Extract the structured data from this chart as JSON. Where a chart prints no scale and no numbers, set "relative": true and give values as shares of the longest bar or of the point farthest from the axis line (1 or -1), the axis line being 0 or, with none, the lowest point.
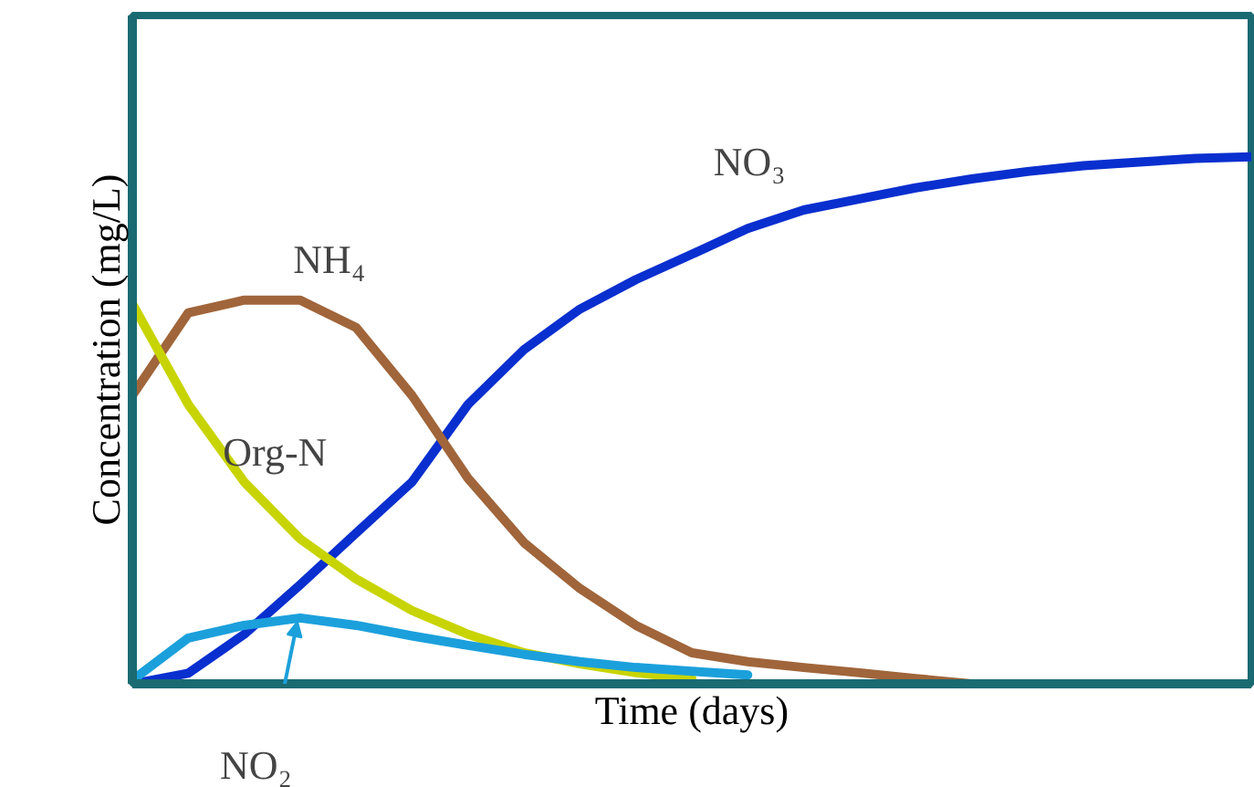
{
  "chart_data": {
    "type": "line",
    "relative": true,
    "xlabel": "Time (days)",
    "ylabel": "Concentration (mg/L)",
    "categories": [
      null,
      null,
      null,
      null,
      null,
      null,
      null,
      null,
      null,
      null,
      null,
      null,
      null,
      null,
      null,
      null,
      null,
      null,
      null,
      null,
      null
    ],
    "series": [
      {
        "name": "NO₃",
        "color": "#0a2fcf",
        "values": [
          0,
          0.02,
          0.094,
          0.188,
          0.286,
          0.383,
          0.53,
          0.634,
          0.711,
          0.767,
          0.815,
          0.864,
          0.899,
          0.92,
          0.941,
          0.958,
          0.972,
          0.983,
          0.99,
          0.997,
          1
        ]
      },
      {
        "name": "NH₄",
        "color": "#a0653a",
        "values": [
          0.547,
          0.704,
          0.728,
          0.728,
          0.676,
          0.547,
          0.39,
          0.268,
          0.181,
          0.111,
          0.059,
          0.042,
          0.031,
          0.021,
          0.01,
          0,
          null,
          null,
          null,
          null,
          null
        ]
      },
      {
        "name": "Org-N",
        "color": "#c8d400",
        "values": [
          0.721,
          0.53,
          0.383,
          0.275,
          0.199,
          0.139,
          0.094,
          0.059,
          0.038,
          0.021,
          0.01,
          null,
          null,
          null,
          null,
          null,
          null,
          null,
          null,
          null,
          null
        ]
      },
      {
        "name": "NO₂",
        "color": "#1ba0dc",
        "values": [
          0.007,
          0.087,
          0.111,
          0.125,
          0.111,
          0.091,
          0.073,
          0.056,
          0.042,
          0.031,
          0.024,
          0.017,
          null,
          null,
          null,
          null,
          null,
          null,
          null,
          null,
          null
        ]
      }
    ]
  }
}
